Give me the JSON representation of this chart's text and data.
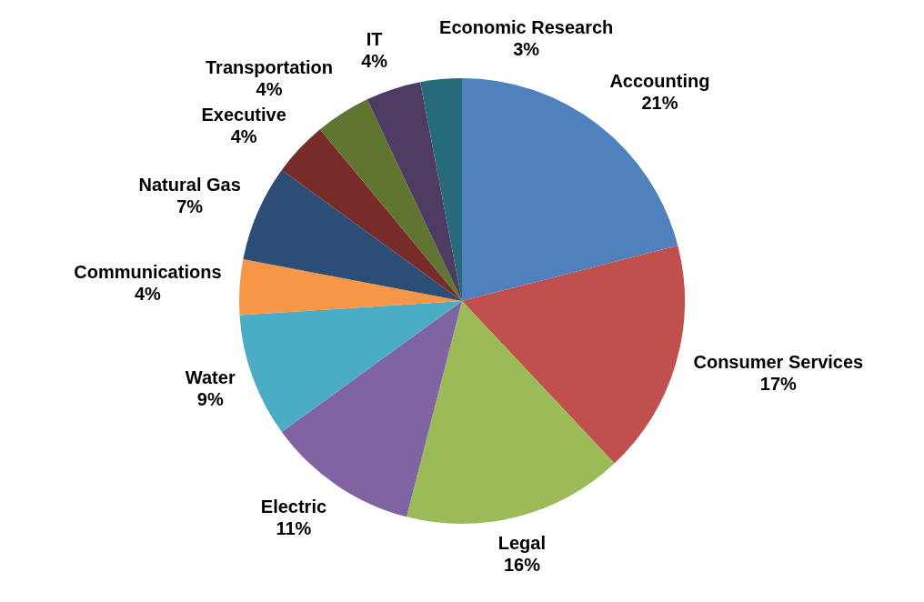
{
  "chart_data": {
    "type": "pie",
    "categories": [
      "Accounting",
      "Consumer Services",
      "Legal",
      "Electric",
      "Water",
      "Communications",
      "Natural Gas",
      "Executive",
      "Transportation",
      "IT",
      "Economic Research"
    ],
    "values": [
      21,
      17,
      16,
      11,
      9,
      4,
      7,
      4,
      4,
      4,
      3
    ],
    "value_labels": [
      "21%",
      "17%",
      "16%",
      "11%",
      "9%",
      "4%",
      "7%",
      "4%",
      "4%",
      "4%",
      "3%"
    ],
    "colors": [
      "#4f81bd",
      "#c0504d",
      "#9bbb59",
      "#8064a2",
      "#4bacc6",
      "#f79646",
      "#2c4d75",
      "#772c2a",
      "#5f7530",
      "#4d3b62",
      "#276a7c"
    ],
    "legend": false
  }
}
